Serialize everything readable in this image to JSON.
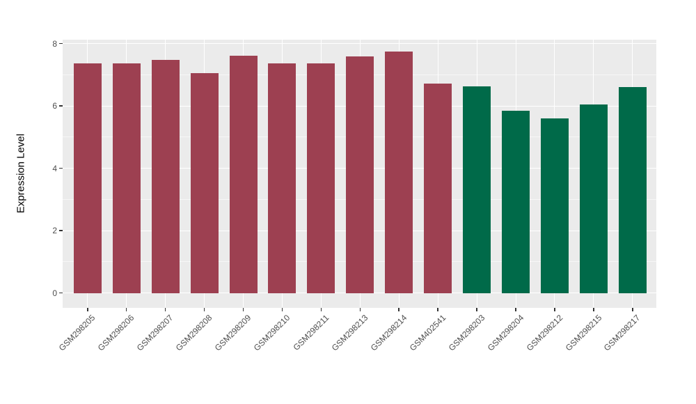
{
  "chart_data": {
    "type": "bar",
    "title": "",
    "xlabel": "",
    "ylabel": "Expression Level",
    "ylim": [
      0,
      8.12
    ],
    "yticks": [
      0,
      2,
      4,
      6,
      8
    ],
    "yminorticks": [
      1,
      3,
      5,
      7
    ],
    "grid": true,
    "legend_position": "none",
    "categories": [
      "GSM298205",
      "GSM298206",
      "GSM298207",
      "GSM298208",
      "GSM298209",
      "GSM298210",
      "GSM298211",
      "GSM298213",
      "GSM298214",
      "GSM402541",
      "GSM298203",
      "GSM298204",
      "GSM298212",
      "GSM298215",
      "GSM298217"
    ],
    "values": [
      7.37,
      7.36,
      7.48,
      7.05,
      7.62,
      7.37,
      7.36,
      7.59,
      7.74,
      6.72,
      6.62,
      5.85,
      5.6,
      6.04,
      6.6
    ],
    "groups": [
      "group-1",
      "group-1",
      "group-1",
      "group-1",
      "group-1",
      "group-1",
      "group-1",
      "group-1",
      "group-1",
      "group-1",
      "group-2",
      "group-2",
      "group-2",
      "group-2",
      "group-2"
    ],
    "group_colors": {
      "group-1": "#9D4051",
      "group-2": "#006A49"
    },
    "panel_background": "#EBEBEB",
    "grid_color": "#FFFFFF",
    "tick_color": "#333333",
    "axis_text_color": "#4D4D4D"
  }
}
